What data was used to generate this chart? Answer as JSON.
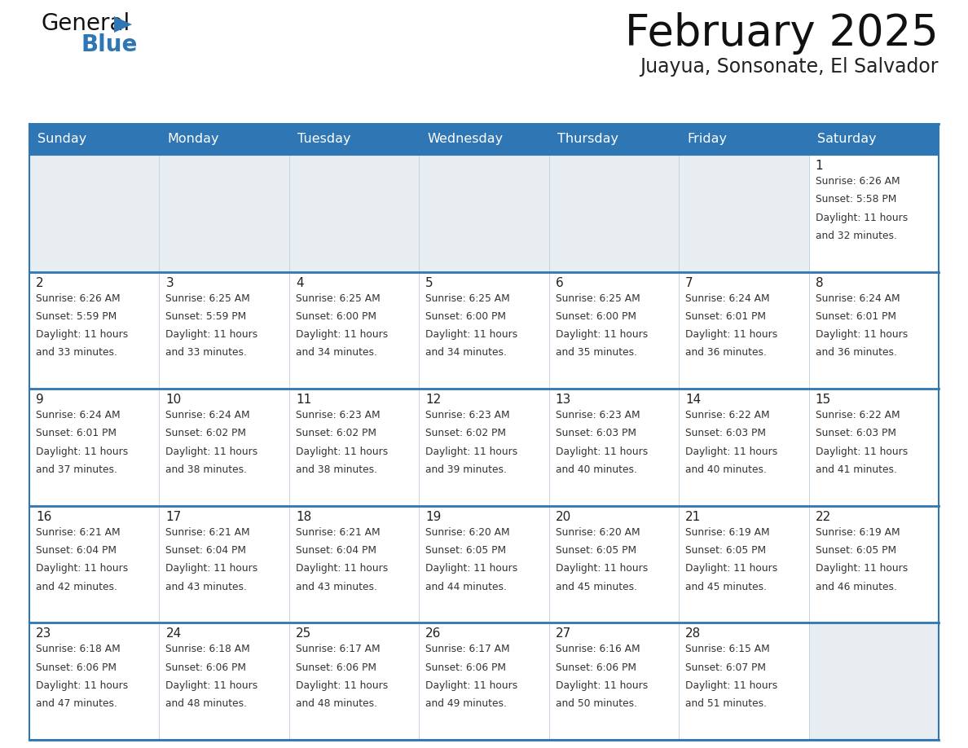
{
  "title": "February 2025",
  "subtitle": "Juayua, Sonsonate, El Salvador",
  "days_of_week": [
    "Sunday",
    "Monday",
    "Tuesday",
    "Wednesday",
    "Thursday",
    "Friday",
    "Saturday"
  ],
  "header_bg_color": "#2e76b4",
  "header_text_color": "#ffffff",
  "cell_bg_color": "#ffffff",
  "empty_cell_bg_color": "#e8edf2",
  "border_color": "#2e76b4",
  "thin_border_color": "#bbccdd",
  "day_num_color": "#222222",
  "info_text_color": "#333333",
  "title_color": "#111111",
  "subtitle_color": "#222222",
  "logo_text_color": "#111111",
  "logo_blue_color": "#2e76b4",
  "calendar_data": [
    [
      {
        "day": 0,
        "sunrise": "",
        "sunset": "",
        "daylight": ""
      },
      {
        "day": 0,
        "sunrise": "",
        "sunset": "",
        "daylight": ""
      },
      {
        "day": 0,
        "sunrise": "",
        "sunset": "",
        "daylight": ""
      },
      {
        "day": 0,
        "sunrise": "",
        "sunset": "",
        "daylight": ""
      },
      {
        "day": 0,
        "sunrise": "",
        "sunset": "",
        "daylight": ""
      },
      {
        "day": 0,
        "sunrise": "",
        "sunset": "",
        "daylight": ""
      },
      {
        "day": 1,
        "sunrise": "6:26 AM",
        "sunset": "5:58 PM",
        "daylight": "11 hours and 32 minutes."
      }
    ],
    [
      {
        "day": 2,
        "sunrise": "6:26 AM",
        "sunset": "5:59 PM",
        "daylight": "11 hours and 33 minutes."
      },
      {
        "day": 3,
        "sunrise": "6:25 AM",
        "sunset": "5:59 PM",
        "daylight": "11 hours and 33 minutes."
      },
      {
        "day": 4,
        "sunrise": "6:25 AM",
        "sunset": "6:00 PM",
        "daylight": "11 hours and 34 minutes."
      },
      {
        "day": 5,
        "sunrise": "6:25 AM",
        "sunset": "6:00 PM",
        "daylight": "11 hours and 34 minutes."
      },
      {
        "day": 6,
        "sunrise": "6:25 AM",
        "sunset": "6:00 PM",
        "daylight": "11 hours and 35 minutes."
      },
      {
        "day": 7,
        "sunrise": "6:24 AM",
        "sunset": "6:01 PM",
        "daylight": "11 hours and 36 minutes."
      },
      {
        "day": 8,
        "sunrise": "6:24 AM",
        "sunset": "6:01 PM",
        "daylight": "11 hours and 36 minutes."
      }
    ],
    [
      {
        "day": 9,
        "sunrise": "6:24 AM",
        "sunset": "6:01 PM",
        "daylight": "11 hours and 37 minutes."
      },
      {
        "day": 10,
        "sunrise": "6:24 AM",
        "sunset": "6:02 PM",
        "daylight": "11 hours and 38 minutes."
      },
      {
        "day": 11,
        "sunrise": "6:23 AM",
        "sunset": "6:02 PM",
        "daylight": "11 hours and 38 minutes."
      },
      {
        "day": 12,
        "sunrise": "6:23 AM",
        "sunset": "6:02 PM",
        "daylight": "11 hours and 39 minutes."
      },
      {
        "day": 13,
        "sunrise": "6:23 AM",
        "sunset": "6:03 PM",
        "daylight": "11 hours and 40 minutes."
      },
      {
        "day": 14,
        "sunrise": "6:22 AM",
        "sunset": "6:03 PM",
        "daylight": "11 hours and 40 minutes."
      },
      {
        "day": 15,
        "sunrise": "6:22 AM",
        "sunset": "6:03 PM",
        "daylight": "11 hours and 41 minutes."
      }
    ],
    [
      {
        "day": 16,
        "sunrise": "6:21 AM",
        "sunset": "6:04 PM",
        "daylight": "11 hours and 42 minutes."
      },
      {
        "day": 17,
        "sunrise": "6:21 AM",
        "sunset": "6:04 PM",
        "daylight": "11 hours and 43 minutes."
      },
      {
        "day": 18,
        "sunrise": "6:21 AM",
        "sunset": "6:04 PM",
        "daylight": "11 hours and 43 minutes."
      },
      {
        "day": 19,
        "sunrise": "6:20 AM",
        "sunset": "6:05 PM",
        "daylight": "11 hours and 44 minutes."
      },
      {
        "day": 20,
        "sunrise": "6:20 AM",
        "sunset": "6:05 PM",
        "daylight": "11 hours and 45 minutes."
      },
      {
        "day": 21,
        "sunrise": "6:19 AM",
        "sunset": "6:05 PM",
        "daylight": "11 hours and 45 minutes."
      },
      {
        "day": 22,
        "sunrise": "6:19 AM",
        "sunset": "6:05 PM",
        "daylight": "11 hours and 46 minutes."
      }
    ],
    [
      {
        "day": 23,
        "sunrise": "6:18 AM",
        "sunset": "6:06 PM",
        "daylight": "11 hours and 47 minutes."
      },
      {
        "day": 24,
        "sunrise": "6:18 AM",
        "sunset": "6:06 PM",
        "daylight": "11 hours and 48 minutes."
      },
      {
        "day": 25,
        "sunrise": "6:17 AM",
        "sunset": "6:06 PM",
        "daylight": "11 hours and 48 minutes."
      },
      {
        "day": 26,
        "sunrise": "6:17 AM",
        "sunset": "6:06 PM",
        "daylight": "11 hours and 49 minutes."
      },
      {
        "day": 27,
        "sunrise": "6:16 AM",
        "sunset": "6:06 PM",
        "daylight": "11 hours and 50 minutes."
      },
      {
        "day": 28,
        "sunrise": "6:15 AM",
        "sunset": "6:07 PM",
        "daylight": "11 hours and 51 minutes."
      },
      {
        "day": 0,
        "sunrise": "",
        "sunset": "",
        "daylight": ""
      }
    ]
  ]
}
